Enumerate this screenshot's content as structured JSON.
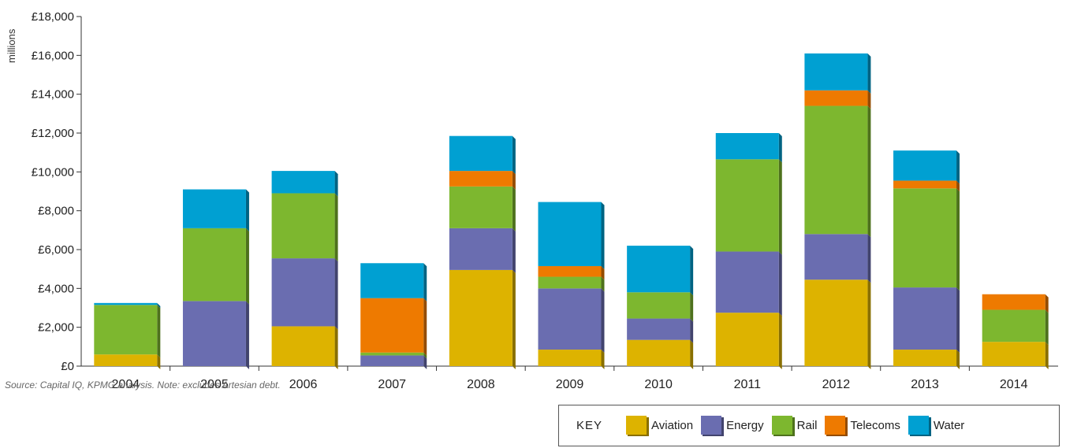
{
  "chart_data": {
    "type": "bar",
    "stacked": true,
    "categories": [
      "2004",
      "2005",
      "2006",
      "2007",
      "2008",
      "2009",
      "2010",
      "2011",
      "2012",
      "2013",
      "2014"
    ],
    "ylabel": "millions",
    "ylim": [
      0,
      18000
    ],
    "yticks": [
      0,
      2000,
      4000,
      6000,
      8000,
      10000,
      12000,
      14000,
      16000,
      18000
    ],
    "ytick_labels": [
      "£0",
      "£2,000",
      "£4,000",
      "£6,000",
      "£8,000",
      "£10,000",
      "£12,000",
      "£14,000",
      "£16,000",
      "£18,000"
    ],
    "grid": false,
    "legend_title": "KEY",
    "legend_position": "bottom-right",
    "series": [
      {
        "name": "Aviation",
        "color": "#DDB300",
        "values": [
          600,
          0,
          2050,
          0,
          4950,
          850,
          1350,
          2750,
          4450,
          850,
          1250
        ]
      },
      {
        "name": "Energy",
        "color": "#6A6DB0",
        "values": [
          0,
          3350,
          3500,
          550,
          2150,
          3150,
          1100,
          3150,
          2350,
          3200,
          0
        ]
      },
      {
        "name": "Rail",
        "color": "#7DB72F",
        "values": [
          2550,
          3750,
          3350,
          150,
          2150,
          600,
          1350,
          4750,
          6600,
          5100,
          1650
        ]
      },
      {
        "name": "Telecoms",
        "color": "#EE7A00",
        "values": [
          0,
          0,
          0,
          2800,
          800,
          550,
          0,
          0,
          800,
          400,
          800
        ]
      },
      {
        "name": "Water",
        "color": "#00A0D2",
        "values": [
          100,
          2000,
          1150,
          1800,
          1800,
          3300,
          2400,
          1350,
          1900,
          1550,
          0
        ]
      }
    ]
  },
  "source_note": "Source: Capital IQ, KPMG analysis. Note: excludes Artesian debt."
}
